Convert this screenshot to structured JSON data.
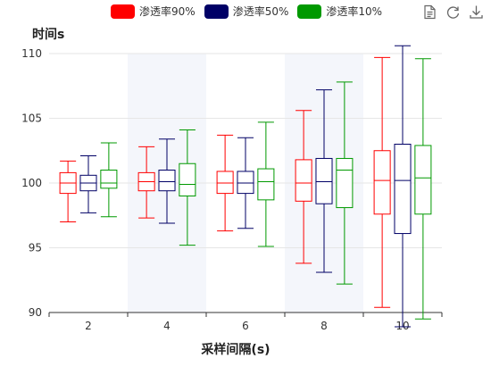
{
  "legend": [
    {
      "label": "渗透率90%",
      "color": "#ff0000"
    },
    {
      "label": "渗透率50%",
      "color": "#000066"
    },
    {
      "label": "渗透率10%",
      "color": "#009900"
    }
  ],
  "toolbox": {
    "icons": [
      "data-view-icon",
      "restore-icon",
      "download-icon"
    ]
  },
  "chart_data": {
    "type": "boxplot",
    "ylabel": "时间s",
    "xlabel": "采样间隔(s)",
    "ylim": [
      90,
      110
    ],
    "yticks": [
      90,
      95,
      100,
      105,
      110
    ],
    "categories": [
      "2",
      "4",
      "6",
      "8",
      "10"
    ],
    "x_tick_labels": [
      "2",
      "4",
      "6",
      "8",
      "10"
    ],
    "shaded_categories": [
      "4",
      "8"
    ],
    "grid": true,
    "legend_position": "top-center",
    "series": [
      {
        "name": "渗透率90%",
        "color": "#ff0000",
        "boxes": [
          {
            "min": 97.0,
            "q1": 99.2,
            "median": 100.0,
            "q3": 100.8,
            "max": 101.7
          },
          {
            "min": 97.3,
            "q1": 99.4,
            "median": 100.1,
            "q3": 100.8,
            "max": 102.8
          },
          {
            "min": 96.3,
            "q1": 99.2,
            "median": 100.0,
            "q3": 100.9,
            "max": 103.7
          },
          {
            "min": 93.8,
            "q1": 98.6,
            "median": 100.0,
            "q3": 101.8,
            "max": 105.6
          },
          {
            "min": 90.4,
            "q1": 97.6,
            "median": 100.2,
            "q3": 102.5,
            "max": 109.7
          }
        ]
      },
      {
        "name": "渗透率50%",
        "color": "#000066",
        "boxes": [
          {
            "min": 97.7,
            "q1": 99.4,
            "median": 100.0,
            "q3": 100.6,
            "max": 102.1
          },
          {
            "min": 96.9,
            "q1": 99.4,
            "median": 100.1,
            "q3": 101.0,
            "max": 103.4
          },
          {
            "min": 96.5,
            "q1": 99.2,
            "median": 100.0,
            "q3": 100.9,
            "max": 103.5
          },
          {
            "min": 93.1,
            "q1": 98.4,
            "median": 100.1,
            "q3": 101.9,
            "max": 107.2
          },
          {
            "min": 88.9,
            "q1": 96.1,
            "median": 100.2,
            "q3": 103.0,
            "max": 110.6
          }
        ]
      },
      {
        "name": "渗透率10%",
        "color": "#009900",
        "boxes": [
          {
            "min": 97.4,
            "q1": 99.6,
            "median": 100.0,
            "q3": 101.0,
            "max": 103.1
          },
          {
            "min": 95.2,
            "q1": 99.0,
            "median": 99.9,
            "q3": 101.5,
            "max": 104.1
          },
          {
            "min": 95.1,
            "q1": 98.7,
            "median": 100.1,
            "q3": 101.1,
            "max": 104.7
          },
          {
            "min": 92.2,
            "q1": 98.1,
            "median": 101.0,
            "q3": 101.9,
            "max": 107.8
          },
          {
            "min": 89.5,
            "q1": 97.6,
            "median": 100.4,
            "q3": 102.9,
            "max": 109.6
          }
        ]
      }
    ]
  }
}
